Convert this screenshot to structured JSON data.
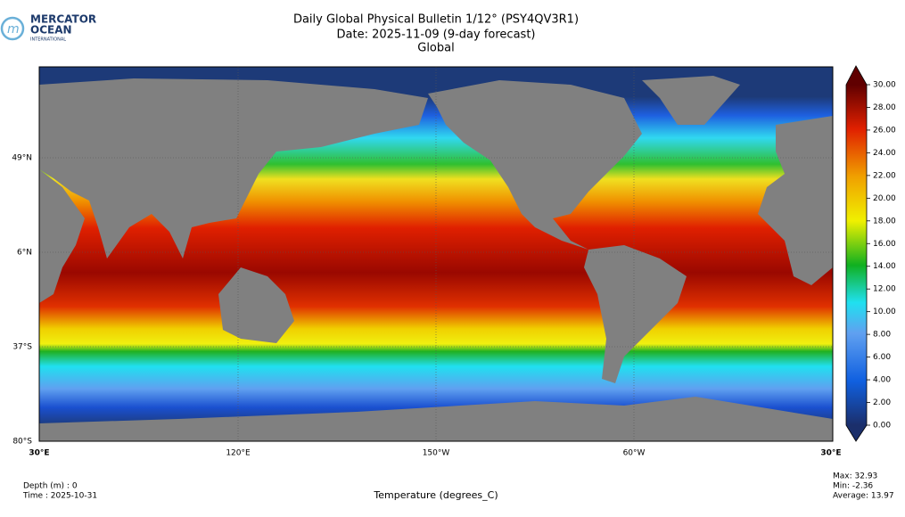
{
  "logo": {
    "line1": "MERCATOR",
    "line2": "OCEAN",
    "line3": "INTERNATIONAL"
  },
  "header": {
    "title": "Daily Global Physical Bulletin 1/12° (PSY4QV3R1)",
    "date": "Date: 2025-11-09 (9-day forecast)",
    "region": "Global"
  },
  "map": {
    "lat_labels": [
      "49°N",
      "6°N",
      "37°S",
      "80°S"
    ],
    "lon_labels": [
      "30°E",
      "120°E",
      "150°W",
      "60°W",
      "30°E"
    ]
  },
  "colorbar": {
    "ticks": [
      {
        "value": 0,
        "label": "0.00"
      },
      {
        "value": 2,
        "label": "2.00"
      },
      {
        "value": 4,
        "label": "4.00"
      },
      {
        "value": 6,
        "label": "6.00"
      },
      {
        "value": 8,
        "label": "8.00"
      },
      {
        "value": 10,
        "label": "10.00"
      },
      {
        "value": 12,
        "label": "12.00"
      },
      {
        "value": 14,
        "label": "14.00"
      },
      {
        "value": 16,
        "label": "16.00"
      },
      {
        "value": 18,
        "label": "18.00"
      },
      {
        "value": 20,
        "label": "20.00"
      },
      {
        "value": 22,
        "label": "22.00"
      },
      {
        "value": 24,
        "label": "24.00"
      },
      {
        "value": 26,
        "label": "26.00"
      },
      {
        "value": 28,
        "label": "28.00"
      },
      {
        "value": 30,
        "label": "30.00"
      }
    ]
  },
  "footer": {
    "depth": "Depth (m) : 0",
    "time": "Time : 2025-10-31",
    "variable": "Temperature (degrees_C)",
    "max": "Max: 32.93",
    "min": "Min: -2.36",
    "average": "Average: 13.97"
  }
}
